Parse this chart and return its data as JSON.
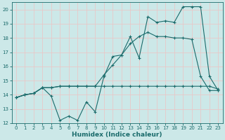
{
  "xlabel": "Humidex (Indice chaleur)",
  "xlim": [
    -0.5,
    23.5
  ],
  "ylim": [
    12,
    20.5
  ],
  "yticks": [
    12,
    13,
    14,
    15,
    16,
    17,
    18,
    19,
    20
  ],
  "xticks": [
    0,
    1,
    2,
    3,
    4,
    5,
    6,
    7,
    8,
    9,
    10,
    11,
    12,
    13,
    14,
    15,
    16,
    17,
    18,
    19,
    20,
    21,
    22,
    23
  ],
  "bg_color": "#cce8e8",
  "grid_color": "#e8c8c8",
  "line_color": "#1a6b6b",
  "line1_x": [
    0,
    1,
    2,
    3,
    4,
    5,
    6,
    7,
    8,
    9,
    10,
    11,
    12,
    13,
    14,
    15,
    16,
    17,
    18,
    19,
    20,
    21,
    22,
    23
  ],
  "line1_y": [
    13.8,
    14.0,
    14.1,
    14.5,
    13.9,
    12.2,
    12.5,
    12.2,
    13.5,
    12.8,
    15.3,
    16.7,
    16.8,
    18.1,
    16.6,
    19.5,
    19.1,
    19.2,
    19.1,
    20.2,
    20.2,
    20.2,
    15.3,
    14.3
  ],
  "line2_x": [
    0,
    1,
    2,
    3,
    4,
    5,
    6,
    7,
    8,
    9,
    10,
    11,
    12,
    13,
    14,
    15,
    16,
    17,
    18,
    19,
    20,
    21,
    22,
    23
  ],
  "line2_y": [
    13.8,
    14.0,
    14.1,
    14.5,
    14.5,
    14.6,
    14.6,
    14.6,
    14.6,
    14.6,
    14.6,
    14.6,
    14.6,
    14.6,
    14.6,
    14.6,
    14.6,
    14.6,
    14.6,
    14.6,
    14.6,
    14.6,
    14.6,
    14.4
  ],
  "line3_x": [
    0,
    1,
    2,
    3,
    4,
    5,
    6,
    7,
    8,
    9,
    10,
    11,
    12,
    13,
    14,
    15,
    16,
    17,
    18,
    19,
    20,
    21,
    22,
    23
  ],
  "line3_y": [
    13.8,
    14.0,
    14.1,
    14.5,
    14.5,
    14.6,
    14.6,
    14.6,
    14.6,
    14.6,
    15.4,
    16.1,
    16.8,
    17.6,
    18.1,
    18.4,
    18.1,
    18.1,
    18.0,
    18.0,
    17.9,
    15.3,
    14.3,
    14.3
  ],
  "tick_fontsize": 5.0,
  "xlabel_fontsize": 6.5
}
